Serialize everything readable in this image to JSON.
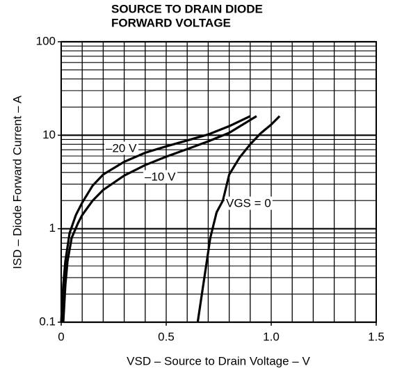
{
  "chart_data": {
    "type": "line",
    "title": [
      "SOURCE TO DRAIN DIODE",
      "FORWARD VOLTAGE"
    ],
    "xlabel": "VSD – Source to Drain Voltage – V",
    "ylabel": "ISD – Diode Forward Current – A",
    "xlim": [
      0,
      1.5
    ],
    "ylim": [
      0.1,
      100
    ],
    "log_y": true,
    "xticks": [
      0,
      0.5,
      {
        "value": 1,
        "label": "1.0"
      },
      1.5
    ],
    "yticks": [
      0.1,
      1,
      10,
      100
    ],
    "xgrid": [
      0,
      0.1,
      0.2,
      0.3,
      0.4,
      0.5,
      0.6,
      0.7,
      0.8,
      0.9,
      1,
      1.1,
      1.2,
      1.3,
      1.4,
      1.5
    ],
    "ygrid": [
      0.1,
      0.2,
      0.3,
      0.4,
      0.5,
      0.6,
      0.7,
      0.8,
      0.9,
      1,
      2,
      3,
      4,
      5,
      6,
      7,
      8,
      9,
      10,
      20,
      30,
      40,
      50,
      60,
      70,
      80,
      90,
      100
    ],
    "grid": true,
    "series": [
      {
        "name": "–20 V",
        "color": "#000000",
        "x": [
          0,
          0.01,
          0.02,
          0.04,
          0.07,
          0.1,
          0.15,
          0.2,
          0.3,
          0.4,
          0.5,
          0.6,
          0.7,
          0.8,
          0.9
        ],
        "values": [
          0.1,
          0.25,
          0.45,
          0.9,
          1.4,
          1.9,
          2.9,
          3.8,
          5.2,
          6.5,
          7.6,
          8.8,
          10.2,
          12.5,
          16
        ]
      },
      {
        "name": "–10 V",
        "color": "#000000",
        "x": [
          0.01,
          0.02,
          0.03,
          0.05,
          0.08,
          0.1,
          0.15,
          0.2,
          0.3,
          0.4,
          0.5,
          0.6,
          0.7,
          0.8,
          0.93
        ],
        "values": [
          0.1,
          0.25,
          0.45,
          0.8,
          1.15,
          1.4,
          2.0,
          2.6,
          3.7,
          4.8,
          5.9,
          7.1,
          8.6,
          10.6,
          16
        ]
      },
      {
        "name": "VGS = 0",
        "color": "#000000",
        "x": [
          0.65,
          0.67,
          0.69,
          0.71,
          0.74,
          0.77,
          0.8,
          0.85,
          0.9,
          0.95,
          1.0,
          1.04
        ],
        "values": [
          0.1,
          0.2,
          0.4,
          0.8,
          1.5,
          2.0,
          3.8,
          5.8,
          8,
          10.5,
          13,
          16
        ]
      }
    ]
  }
}
